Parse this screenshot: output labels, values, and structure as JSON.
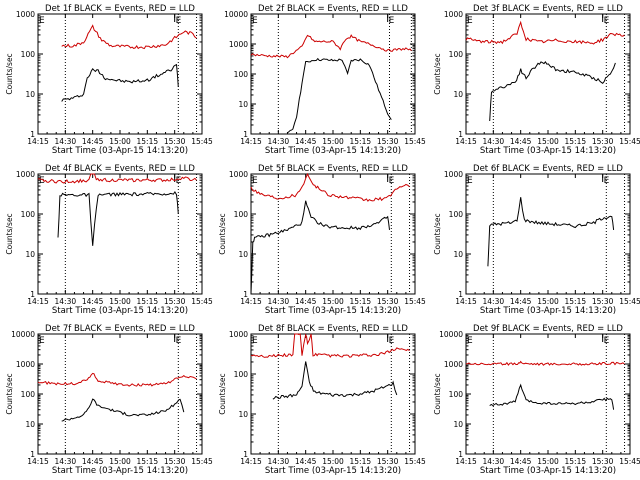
{
  "figure": {
    "background": "#ffffff",
    "axis_color": "#000000"
  },
  "chart_data": [
    {
      "type": "line",
      "title": "Det 1f BLACK = Events, RED = LLD",
      "xlabel": "Start Time (03-Apr-15 14:13:20)",
      "ylabel": "Counts/sec",
      "yscale": "log",
      "ylim": [
        1,
        1000
      ],
      "xlim": [
        "14:15",
        "13:45"
      ],
      "xticks": [
        "14:15",
        "14:30",
        "14:45",
        "15:00",
        "15:15",
        "15:30",
        "15:45"
      ],
      "yticks": [
        "1",
        "10",
        "100",
        "1000"
      ],
      "vlines": [
        "14:30",
        "15:32",
        "15:42"
      ],
      "markers": [
        {
          "x": "15:30",
          "label": "E"
        }
      ],
      "series": [
        {
          "color": "#000000",
          "x": [
            "14:28",
            "14:35",
            "14:40",
            "14:42",
            "14:45",
            "14:48",
            "14:52",
            "14:58",
            "15:05",
            "15:15",
            "15:20",
            "15:28",
            "15:31",
            "15:32"
          ],
          "values": [
            7,
            8,
            10,
            25,
            40,
            38,
            25,
            22,
            20,
            22,
            28,
            40,
            55,
            15
          ]
        },
        {
          "color": "#cc0000",
          "x": [
            "14:28",
            "14:35",
            "14:40",
            "14:45",
            "14:50",
            "14:55",
            "15:05",
            "15:15",
            "15:25",
            "15:30",
            "15:35",
            "15:40",
            "15:42"
          ],
          "values": [
            160,
            160,
            200,
            480,
            220,
            160,
            150,
            150,
            170,
            250,
            360,
            320,
            250
          ]
        }
      ]
    },
    {
      "type": "line",
      "title": "Det 2f BLACK = Events, RED = LLD",
      "xlabel": "Start Time (03-Apr-15 14:13:20)",
      "ylabel": "",
      "yscale": "log",
      "ylim": [
        1,
        10000
      ],
      "xlim": [
        "14:15",
        "13:45"
      ],
      "xticks": [
        "14:15",
        "14:30",
        "14:45",
        "15:00",
        "15:15",
        "15:30",
        "15:45"
      ],
      "yticks": [
        "1",
        "10",
        "100",
        "1000",
        "10000"
      ],
      "vlines": [
        "14:30",
        "15:31",
        "15:43"
      ],
      "markers": [
        {
          "x": "15:30",
          "label": "E"
        }
      ],
      "series": [
        {
          "color": "#000000",
          "x": [
            "14:35",
            "14:38",
            "14:40",
            "14:43",
            "14:45",
            "14:50",
            "14:55",
            "15:00",
            "15:05",
            "15:08",
            "15:10",
            "15:15",
            "15:20",
            "15:25",
            "15:30",
            "15:32"
          ],
          "values": [
            1,
            1.5,
            4,
            50,
            240,
            300,
            300,
            280,
            300,
            100,
            280,
            300,
            200,
            30,
            5,
            3
          ]
        },
        {
          "color": "#cc0000",
          "x": [
            "14:15",
            "14:25",
            "14:35",
            "14:43",
            "14:46",
            "14:50",
            "15:00",
            "15:04",
            "15:07",
            "15:10",
            "15:15",
            "15:20",
            "15:30",
            "15:40",
            "15:43"
          ],
          "values": [
            450,
            400,
            380,
            800,
            2000,
            1200,
            1200,
            700,
            1500,
            1800,
            1200,
            1000,
            600,
            700,
            600
          ]
        }
      ]
    },
    {
      "type": "line",
      "title": "Det 3f BLACK = Events, RED = LLD",
      "xlabel": "Start Time (03-Apr-15 14:13:20)",
      "ylabel": "Counts/sec",
      "yscale": "log",
      "ylim": [
        1,
        1000
      ],
      "xlim": [
        "14:15",
        "13:45"
      ],
      "xticks": [
        "14:15",
        "14:30",
        "14:45",
        "15:00",
        "15:15",
        "15:30",
        "15:45"
      ],
      "yticks": [
        "1",
        "10",
        "100",
        "1000"
      ],
      "vlines": [
        "14:30",
        "15:32",
        "15:42"
      ],
      "markers": [
        {
          "x": "15:30",
          "label": "E"
        }
      ],
      "series": [
        {
          "color": "#000000",
          "x": [
            "14:28",
            "14:29",
            "14:35",
            "14:42",
            "14:45",
            "14:48",
            "14:52",
            "14:57",
            "15:05",
            "15:15",
            "15:25",
            "15:30",
            "15:35",
            "15:37"
          ],
          "values": [
            2,
            12,
            15,
            20,
            40,
            25,
            45,
            65,
            40,
            35,
            25,
            20,
            35,
            60
          ]
        },
        {
          "color": "#cc0000",
          "x": [
            "14:15",
            "14:25",
            "14:35",
            "14:43",
            "14:45",
            "14:48",
            "14:55",
            "15:05",
            "15:15",
            "15:25",
            "15:30",
            "15:35",
            "15:42"
          ],
          "values": [
            240,
            200,
            200,
            320,
            600,
            240,
            200,
            220,
            200,
            190,
            230,
            320,
            300
          ]
        }
      ]
    },
    {
      "type": "line",
      "title": "Det 4f BLACK = Events, RED = LLD",
      "xlabel": "Start Time (03-Apr-15 14:13:20)",
      "ylabel": "Counts/sec",
      "yscale": "log",
      "ylim": [
        1,
        1000
      ],
      "xlim": [
        "14:15",
        "13:45"
      ],
      "xticks": [
        "14:15",
        "14:30",
        "14:45",
        "15:00",
        "15:15",
        "15:30",
        "15:45"
      ],
      "yticks": [
        "1",
        "10",
        "100",
        "1000"
      ],
      "vlines": [
        "14:30",
        "15:32",
        "15:42"
      ],
      "markers": [
        {
          "x": "15:30",
          "label": "E"
        }
      ],
      "series": [
        {
          "color": "#000000",
          "x": [
            "14:26",
            "14:27",
            "14:30",
            "14:43",
            "14:45",
            "14:46",
            "14:48",
            "14:55",
            "15:10",
            "15:20",
            "15:31",
            "15:32"
          ],
          "values": [
            25,
            300,
            300,
            300,
            15,
            50,
            300,
            310,
            310,
            320,
            330,
            100
          ]
        },
        {
          "color": "#cc0000",
          "x": [
            "14:15",
            "14:25",
            "14:35",
            "14:43",
            "14:45",
            "14:47",
            "14:55",
            "15:10",
            "15:25",
            "15:35",
            "15:42"
          ],
          "values": [
            700,
            650,
            650,
            700,
            2000,
            750,
            700,
            700,
            700,
            800,
            700
          ]
        }
      ]
    },
    {
      "type": "line",
      "title": "Det 5f BLACK = Events, RED = LLD",
      "xlabel": "Start Time (03-Apr-15 14:13:20)",
      "ylabel": "Counts/sec",
      "yscale": "log",
      "ylim": [
        1,
        1000
      ],
      "xlim": [
        "14:15",
        "13:45"
      ],
      "xticks": [
        "14:15",
        "14:30",
        "14:45",
        "15:00",
        "15:15",
        "15:30",
        "15:45"
      ],
      "yticks": [
        "1",
        "10",
        "100",
        "1000"
      ],
      "vlines": [
        "14:30",
        "15:32",
        "15:42"
      ],
      "markers": [
        {
          "x": "15:30",
          "label": "E"
        }
      ],
      "series": [
        {
          "color": "#000000",
          "x": [
            "14:15",
            "14:16",
            "14:17",
            "14:25",
            "14:35",
            "14:43",
            "14:45",
            "14:48",
            "14:55",
            "15:05",
            "15:15",
            "15:25",
            "15:30",
            "15:31"
          ],
          "values": [
            1,
            20,
            25,
            30,
            40,
            60,
            200,
            80,
            50,
            45,
            45,
            60,
            85,
            40
          ]
        },
        {
          "color": "#cc0000",
          "x": [
            "14:15",
            "14:20",
            "14:30",
            "14:40",
            "14:44",
            "14:46",
            "14:50",
            "14:58",
            "15:10",
            "15:20",
            "15:30",
            "15:35",
            "15:40",
            "15:42"
          ],
          "values": [
            450,
            320,
            250,
            300,
            600,
            1000,
            500,
            300,
            250,
            220,
            250,
            450,
            500,
            480
          ]
        }
      ]
    },
    {
      "type": "line",
      "title": "Det 6f BLACK = Events, RED = LLD",
      "xlabel": "Start Time (03-Apr-15 14:13:20)",
      "ylabel": "Counts/sec",
      "yscale": "log",
      "ylim": [
        1,
        1000
      ],
      "xlim": [
        "14:15",
        "13:45"
      ],
      "xticks": [
        "14:15",
        "14:30",
        "14:45",
        "15:00",
        "15:15",
        "15:30",
        "15:45"
      ],
      "yticks": [
        "1",
        "10",
        "100",
        "1000"
      ],
      "vlines": [
        "14:30",
        "15:32",
        "15:42"
      ],
      "markers": [
        {
          "x": "15:30",
          "label": "E"
        }
      ],
      "series": [
        {
          "color": "#000000",
          "x": [
            "14:27",
            "14:28",
            "14:30",
            "14:40",
            "14:43",
            "14:45",
            "14:47",
            "14:55",
            "15:05",
            "15:15",
            "15:25",
            "15:30",
            "15:35",
            "15:36"
          ],
          "values": [
            5,
            50,
            55,
            60,
            70,
            250,
            70,
            60,
            55,
            50,
            60,
            80,
            90,
            40
          ]
        }
      ]
    },
    {
      "type": "line",
      "title": "Det 7f BLACK = Events, RED = LLD",
      "xlabel": "Start Time (03-Apr-15 14:13:20)",
      "ylabel": "Counts/sec",
      "yscale": "log",
      "ylim": [
        1,
        10000
      ],
      "xlim": [
        "14:15",
        "13:45"
      ],
      "xticks": [
        "14:15",
        "14:30",
        "14:45",
        "15:00",
        "15:15",
        "15:30",
        "15:45"
      ],
      "yticks": [
        "1",
        "10",
        "100",
        "1000",
        "10000"
      ],
      "vlines": [
        "14:30",
        "15:32",
        "15:42"
      ],
      "markers": [
        {
          "x": "15:30",
          "label": "E"
        }
      ],
      "series": [
        {
          "color": "#000000",
          "x": [
            "14:28",
            "14:35",
            "14:40",
            "14:43",
            "14:45",
            "14:48",
            "14:55",
            "15:05",
            "15:15",
            "15:25",
            "15:30",
            "15:33",
            "15:35"
          ],
          "values": [
            13,
            16,
            20,
            35,
            70,
            40,
            30,
            20,
            20,
            28,
            45,
            70,
            25
          ]
        },
        {
          "color": "#cc0000",
          "x": [
            "14:15",
            "14:25",
            "14:35",
            "14:42",
            "14:45",
            "14:48",
            "14:55",
            "15:05",
            "15:15",
            "15:25",
            "15:30",
            "15:35",
            "15:42"
          ],
          "values": [
            250,
            220,
            220,
            300,
            500,
            280,
            230,
            200,
            200,
            220,
            300,
            400,
            320
          ]
        }
      ]
    },
    {
      "type": "line",
      "title": "Det 8f BLACK = Events, RED = LLD",
      "xlabel": "Start Time (03-Apr-15 14:13:20)",
      "ylabel": "Counts/sec",
      "yscale": "log",
      "ylim": [
        1,
        1000
      ],
      "xlim": [
        "14:15",
        "13:45"
      ],
      "xticks": [
        "14:15",
        "14:30",
        "14:45",
        "15:00",
        "15:15",
        "15:30",
        "15:45"
      ],
      "yticks": [
        "1",
        "10",
        "100",
        "1000"
      ],
      "vlines": [
        "14:30",
        "15:32",
        "15:42"
      ],
      "markers": [
        {
          "x": "15:30",
          "label": "E"
        }
      ],
      "series": [
        {
          "color": "#000000",
          "x": [
            "14:27",
            "14:35",
            "14:40",
            "14:43",
            "14:45",
            "14:47",
            "14:50",
            "15:00",
            "15:10",
            "15:20",
            "15:30",
            "15:33",
            "15:35"
          ],
          "values": [
            25,
            28,
            30,
            50,
            200,
            60,
            35,
            30,
            30,
            35,
            50,
            60,
            30
          ]
        },
        {
          "color": "#cc0000",
          "x": [
            "14:15",
            "14:25",
            "14:35",
            "14:38",
            "14:39",
            "14:42",
            "14:43",
            "14:45",
            "14:46",
            "14:48",
            "14:49",
            "14:52",
            "15:05",
            "15:15",
            "15:25",
            "15:30",
            "15:35",
            "15:42"
          ],
          "values": [
            300,
            280,
            300,
            300,
            1000,
            1000,
            300,
            1000,
            600,
            1000,
            300,
            300,
            280,
            290,
            300,
            350,
            450,
            380
          ]
        }
      ]
    },
    {
      "type": "line",
      "title": "Det 9f BLACK = Events, RED = LLD",
      "xlabel": "Start Time (03-Apr-15 14:13:20)",
      "ylabel": "Counts/sec",
      "yscale": "log",
      "ylim": [
        1,
        10000
      ],
      "xlim": [
        "14:15",
        "13:45"
      ],
      "xticks": [
        "14:15",
        "14:30",
        "14:45",
        "15:00",
        "15:15",
        "15:30",
        "15:45"
      ],
      "yticks": [
        "1",
        "10",
        "100",
        "1000",
        "10000"
      ],
      "vlines": [
        "14:30",
        "15:32",
        "15:42"
      ],
      "markers": [
        {
          "x": "15:30",
          "label": "E"
        }
      ],
      "series": [
        {
          "color": "#000000",
          "x": [
            "14:28",
            "14:35",
            "14:42",
            "14:45",
            "14:48",
            "14:55",
            "15:05",
            "15:15",
            "15:25",
            "15:30",
            "15:35",
            "15:36"
          ],
          "values": [
            45,
            45,
            55,
            200,
            60,
            50,
            48,
            48,
            55,
            65,
            70,
            30
          ]
        },
        {
          "color": "#cc0000",
          "x": [
            "14:15",
            "14:25",
            "14:35",
            "14:44",
            "14:45",
            "14:46",
            "14:55",
            "15:05",
            "15:15",
            "15:25",
            "15:35",
            "15:42"
          ],
          "values": [
            1050,
            1000,
            1000,
            1050,
            1250,
            1050,
            1000,
            1000,
            1000,
            1000,
            1050,
            1000
          ]
        }
      ]
    }
  ]
}
